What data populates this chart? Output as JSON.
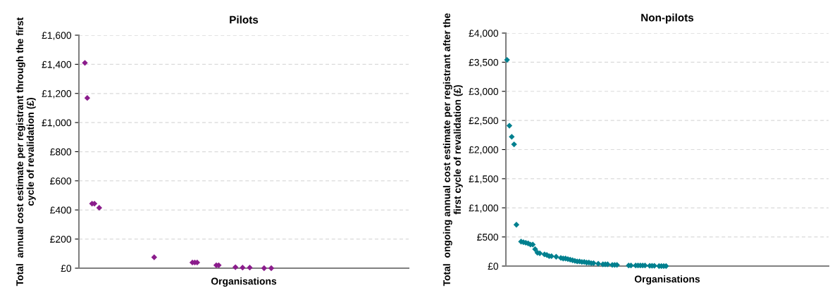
{
  "chart_data": [
    {
      "type": "scatter",
      "title": "Pilots",
      "xlabel": "Organisations",
      "ylabel": "Total  annual cost estimate per registrant through the first cycle of revalidation (£)",
      "categories": [
        null,
        null,
        null,
        null,
        null,
        null,
        null,
        null,
        null,
        null,
        null,
        null,
        null,
        null,
        null,
        null,
        null,
        null,
        null,
        null,
        null,
        null,
        null,
        null,
        null,
        null,
        null,
        null,
        null,
        null,
        null,
        null,
        null,
        null,
        null,
        null,
        null,
        null,
        null,
        null,
        null,
        null,
        null,
        null,
        null,
        null,
        null,
        null,
        null,
        null,
        null,
        null,
        null,
        null,
        null,
        null,
        null,
        null,
        null,
        null,
        null,
        null,
        null,
        null,
        null,
        null,
        null,
        null,
        null,
        null,
        null,
        null,
        null,
        null,
        null,
        null,
        null,
        null,
        null,
        null,
        null,
        null,
        null,
        null,
        null,
        null,
        null,
        null,
        null,
        null,
        null,
        null,
        null,
        null,
        null,
        null,
        null,
        null,
        null,
        null,
        null,
        null,
        null,
        null,
        null,
        null,
        null,
        null,
        null,
        null,
        null,
        null,
        null,
        null,
        null,
        null,
        null,
        null,
        null,
        null,
        null,
        null,
        null,
        null,
        null,
        null,
        null,
        null,
        null,
        null,
        null,
        null,
        null,
        null,
        null,
        null,
        null,
        null
      ],
      "series": [
        {
          "color": "#8b1c8c",
          "values": [
            null,
            null,
            1410,
            1169,
            null,
            443,
            443,
            null,
            415,
            null,
            null,
            null,
            null,
            null,
            null,
            null,
            null,
            null,
            null,
            null,
            null,
            null,
            null,
            null,
            null,
            null,
            null,
            null,
            null,
            null,
            null,
            75,
            null,
            null,
            null,
            null,
            null,
            null,
            null,
            null,
            null,
            null,
            null,
            null,
            null,
            null,
            null,
            39,
            39,
            39,
            null,
            null,
            null,
            null,
            null,
            null,
            null,
            20,
            20,
            null,
            null,
            null,
            null,
            null,
            null,
            7,
            null,
            null,
            4,
            null,
            null,
            4,
            null,
            null,
            null,
            null,
            null,
            0,
            null,
            null,
            0,
            null,
            null,
            null,
            null,
            null,
            null,
            null,
            null,
            null,
            null,
            null,
            null,
            null,
            null,
            null,
            null,
            null,
            null,
            null,
            null,
            null,
            null,
            null,
            null,
            null,
            null,
            null,
            null,
            null,
            null,
            null,
            null,
            null,
            null,
            null,
            null,
            null,
            null,
            null,
            null,
            null,
            null,
            null,
            null,
            null,
            null,
            null,
            null,
            null,
            null,
            null,
            null,
            null,
            null,
            null,
            null,
            null
          ]
        }
      ],
      "ylim": [
        0,
        1600
      ],
      "yticks": [
        {
          "value": 0,
          "label": "£0"
        },
        {
          "value": 200,
          "label": "£200"
        },
        {
          "value": 400,
          "label": "£400"
        },
        {
          "value": 600,
          "label": "£600"
        },
        {
          "value": 800,
          "label": "£800"
        },
        {
          "value": 1000,
          "label": "£1,000"
        },
        {
          "value": 1200,
          "label": "£1,200"
        },
        {
          "value": 1400,
          "label": "£1,400"
        },
        {
          "value": 1600,
          "label": "£1,600"
        }
      ],
      "grid": "y",
      "marker": "diamond"
    },
    {
      "type": "scatter",
      "title": "Non-pilots",
      "xlabel": "Organisations",
      "ylabel": "Total  ongoing annual cost estimate per registrant after the first cycle of revalidation (£)",
      "categories": [
        null,
        null,
        null,
        null,
        null,
        null,
        null,
        null,
        null,
        null,
        null,
        null,
        null,
        null,
        null,
        null,
        null,
        null,
        null,
        null,
        null,
        null,
        null,
        null,
        null,
        null,
        null,
        null,
        null,
        null,
        null,
        null,
        null,
        null,
        null,
        null,
        null,
        null,
        null,
        null,
        null,
        null,
        null,
        null,
        null,
        null,
        null,
        null,
        null,
        null,
        null,
        null,
        null,
        null,
        null,
        null,
        null,
        null,
        null,
        null,
        null,
        null,
        null,
        null,
        null,
        null,
        null,
        null,
        null,
        null,
        null,
        null,
        null,
        null,
        null,
        null,
        null,
        null,
        null,
        null,
        null,
        null,
        null,
        null,
        null,
        null,
        null,
        null,
        null,
        null,
        null,
        null,
        null,
        null,
        null,
        null,
        null,
        null,
        null,
        null,
        null,
        null,
        null,
        null,
        null,
        null,
        null,
        null,
        null,
        null,
        null,
        null,
        null,
        null,
        null,
        null,
        null,
        null,
        null,
        null,
        null,
        null,
        null,
        null,
        null,
        null,
        null,
        null,
        null,
        null,
        null,
        null,
        null,
        null,
        null,
        null,
        null,
        null
      ],
      "series": [
        {
          "color": "#00808f",
          "values": [
            3540,
            2410,
            2220,
            2090,
            710,
            null,
            420,
            410,
            400,
            390,
            370,
            370,
            290,
            230,
            220,
            null,
            200,
            190,
            170,
            170,
            null,
            160,
            null,
            140,
            130,
            130,
            120,
            110,
            100,
            90,
            80,
            80,
            70,
            70,
            60,
            60,
            50,
            50,
            null,
            40,
            null,
            30,
            30,
            30,
            null,
            20,
            20,
            20,
            null,
            null,
            null,
            null,
            10,
            10,
            null,
            10,
            10,
            10,
            10,
            10,
            null,
            5,
            5,
            5,
            null,
            0,
            0,
            0,
            0,
            null,
            null,
            null,
            null,
            null,
            null,
            null,
            null,
            null,
            null,
            null,
            null,
            null,
            null,
            null,
            null,
            null,
            null,
            null,
            null,
            null,
            null,
            null,
            null,
            null,
            null,
            null,
            null,
            null,
            null,
            null,
            null,
            null,
            null,
            null,
            null,
            null,
            null,
            null,
            null,
            null,
            null,
            null,
            null,
            null,
            null,
            null,
            null,
            null,
            null,
            null,
            null,
            null,
            null,
            null,
            null,
            null,
            null,
            null,
            null,
            null,
            null,
            null,
            null,
            null,
            null,
            null,
            null,
            null
          ]
        }
      ],
      "ylim": [
        0,
        4000
      ],
      "yticks": [
        {
          "value": 0,
          "label": "£0"
        },
        {
          "value": 500,
          "label": "£500"
        },
        {
          "value": 1000,
          "label": "£1,000"
        },
        {
          "value": 1500,
          "label": "£1,500"
        },
        {
          "value": 2000,
          "label": "£2,000"
        },
        {
          "value": 2500,
          "label": "£2,500"
        },
        {
          "value": 3000,
          "label": "£3,000"
        },
        {
          "value": 3500,
          "label": "£3,500"
        },
        {
          "value": 4000,
          "label": "£4,000"
        }
      ],
      "grid": "y",
      "marker": "diamond"
    }
  ]
}
